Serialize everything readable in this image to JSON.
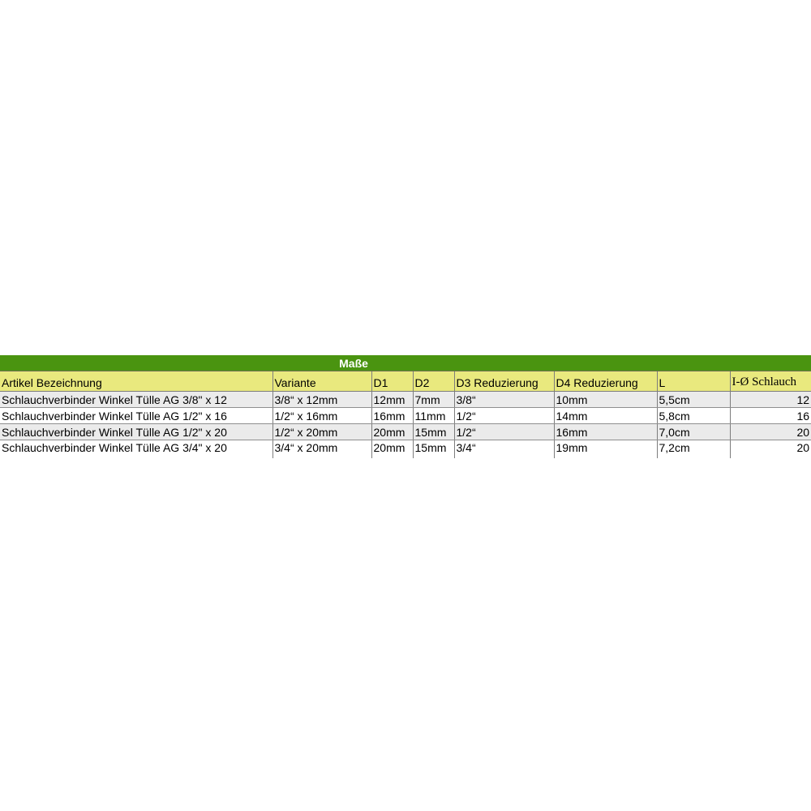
{
  "table": {
    "title": "Maße",
    "colors": {
      "title_bg": "#4a9410",
      "title_text": "#ffffff",
      "header_bg": "#e9e97e",
      "row_bg": "#ffffff",
      "row_alt_bg": "#ebebeb",
      "border": "#7d7d7d"
    },
    "columns": [
      {
        "label": "Artikel Bezeichnung",
        "serif": false
      },
      {
        "label": "Variante",
        "serif": false
      },
      {
        "label": "D1",
        "serif": false
      },
      {
        "label": "D2",
        "serif": false
      },
      {
        "label": "D3 Reduzierung",
        "serif": false
      },
      {
        "label": "D4 Reduzierung",
        "serif": false
      },
      {
        "label": "L",
        "serif": false
      },
      {
        "label": "I-Ø Schlauch",
        "serif": true
      }
    ],
    "rows": [
      [
        "Schlauchverbinder Winkel Tülle AG 3/8\" x 12",
        "3/8“ x 12mm",
        "12mm",
        "7mm",
        "3/8“",
        "10mm",
        "5,5cm",
        "12"
      ],
      [
        "Schlauchverbinder Winkel Tülle AG 1/2\" x 16",
        "1/2“ x 16mm",
        "16mm",
        "11mm",
        "1/2“",
        "14mm",
        "5,8cm",
        "16"
      ],
      [
        "Schlauchverbinder Winkel Tülle AG 1/2\" x 20",
        "1/2“ x 20mm",
        "20mm",
        "15mm",
        "1/2“",
        "16mm",
        "7,0cm",
        "20"
      ],
      [
        "Schlauchverbinder Winkel Tülle AG 3/4\" x 20",
        "3/4“ x 20mm",
        "20mm",
        "15mm",
        "3/4“",
        "19mm",
        "7,2cm",
        "20"
      ]
    ]
  }
}
